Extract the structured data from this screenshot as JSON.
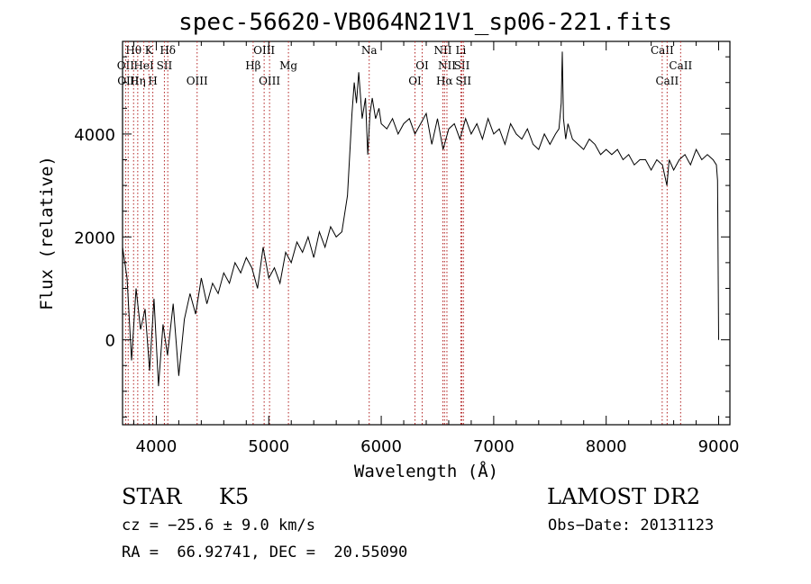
{
  "chart_data": {
    "type": "line",
    "title": "spec-56620-VB064N21V1_sp06-221.fits",
    "xlabel": "Wavelength (Å)",
    "ylabel": "Flux (relative)",
    "xlim": [
      3700,
      9100
    ],
    "ylim": [
      -1650,
      5800
    ],
    "x_ticks": [
      4000,
      5000,
      6000,
      7000,
      8000,
      9000
    ],
    "y_ticks": [
      0,
      2000,
      4000
    ],
    "grid": false,
    "series": [
      {
        "x": [
          3700,
          3740,
          3780,
          3820,
          3860,
          3900,
          3940,
          3980,
          4020,
          4060,
          4100,
          4150,
          4200,
          4250,
          4300,
          4350,
          4400,
          4450,
          4500,
          4550,
          4600,
          4650,
          4700,
          4750,
          4800,
          4850,
          4900,
          4950,
          5000,
          5050,
          5100,
          5150,
          5200,
          5250,
          5300,
          5350,
          5400,
          5450,
          5500,
          5550,
          5600,
          5650,
          5700,
          5720,
          5740,
          5760,
          5780,
          5800,
          5830,
          5860,
          5880,
          5900,
          5920,
          5950,
          5980,
          6000,
          6050,
          6100,
          6150,
          6200,
          6250,
          6300,
          6350,
          6400,
          6450,
          6500,
          6550,
          6600,
          6650,
          6700,
          6750,
          6800,
          6850,
          6900,
          6950,
          7000,
          7050,
          7100,
          7150,
          7200,
          7250,
          7300,
          7350,
          7400,
          7450,
          7500,
          7550,
          7580,
          7600,
          7610,
          7620,
          7640,
          7660,
          7700,
          7750,
          7800,
          7850,
          7900,
          7950,
          8000,
          8050,
          8100,
          8150,
          8200,
          8250,
          8300,
          8350,
          8400,
          8450,
          8500,
          8540,
          8560,
          8600,
          8650,
          8700,
          8750,
          8800,
          8850,
          8900,
          8950,
          8980,
          8990,
          9000
        ],
        "y": [
          1800,
          1200,
          -400,
          1000,
          200,
          600,
          -600,
          800,
          -900,
          300,
          -300,
          700,
          -700,
          400,
          900,
          500,
          1200,
          700,
          1100,
          900,
          1300,
          1100,
          1500,
          1300,
          1600,
          1400,
          1000,
          1800,
          1200,
          1400,
          1100,
          1700,
          1500,
          1900,
          1700,
          2000,
          1600,
          2100,
          1800,
          2200,
          2000,
          2100,
          2800,
          3600,
          4400,
          5000,
          4600,
          5200,
          4300,
          4700,
          3600,
          4400,
          4700,
          4300,
          4500,
          4200,
          4100,
          4300,
          4000,
          4200,
          4300,
          4000,
          4200,
          4400,
          3800,
          4300,
          3700,
          4100,
          4200,
          3900,
          4300,
          4000,
          4200,
          3900,
          4300,
          4000,
          4100,
          3800,
          4200,
          4000,
          3900,
          4100,
          3800,
          3700,
          4000,
          3800,
          4000,
          4100,
          4600,
          5600,
          4300,
          3900,
          4200,
          3900,
          3800,
          3700,
          3900,
          3800,
          3600,
          3700,
          3600,
          3700,
          3500,
          3600,
          3400,
          3500,
          3500,
          3300,
          3500,
          3400,
          3000,
          3500,
          3300,
          3500,
          3600,
          3400,
          3700,
          3500,
          3600,
          3500,
          3400,
          3100,
          0
        ]
      }
    ],
    "line_markers": [
      {
        "label": "Hθ",
        "x": 3798,
        "row": 0
      },
      {
        "label": "K",
        "x": 3934,
        "row": 0
      },
      {
        "label": "Hδ",
        "x": 4102,
        "row": 0
      },
      {
        "label": "OII",
        "x": 3727,
        "row": 1
      },
      {
        "label": "HeI",
        "x": 3889,
        "row": 1
      },
      {
        "label": "SII",
        "x": 4072,
        "row": 1
      },
      {
        "label": "OIII",
        "x": 3750,
        "row": 2
      },
      {
        "label": "Hη",
        "x": 3835,
        "row": 2
      },
      {
        "label": "H",
        "x": 3969,
        "row": 2
      },
      {
        "label": "OIII",
        "x": 4363,
        "row": 2
      },
      {
        "label": "OIII",
        "x": 4959,
        "row": 0
      },
      {
        "label": "Hβ",
        "x": 4861,
        "row": 1
      },
      {
        "label": "Mg",
        "x": 5175,
        "row": 1
      },
      {
        "label": "OIII",
        "x": 5007,
        "row": 2
      },
      {
        "label": "Na",
        "x": 5893,
        "row": 0
      },
      {
        "label": "OI",
        "x": 6364,
        "row": 1
      },
      {
        "label": "OI",
        "x": 6300,
        "row": 2
      },
      {
        "label": "NII",
        "x": 6548,
        "row": 0
      },
      {
        "label": "Li",
        "x": 6708,
        "row": 0
      },
      {
        "label": "NII",
        "x": 6584,
        "row": 1
      },
      {
        "label": "SII",
        "x": 6717,
        "row": 1
      },
      {
        "label": "Hα",
        "x": 6563,
        "row": 2
      },
      {
        "label": "SII",
        "x": 6731,
        "row": 2
      },
      {
        "label": "CaII",
        "x": 8498,
        "row": 0
      },
      {
        "label": "CaII",
        "x": 8662,
        "row": 1
      },
      {
        "label": "CaII",
        "x": 8542,
        "row": 2
      }
    ]
  },
  "info": {
    "class_label": "STAR",
    "subclass": "K5",
    "survey": "LAMOST DR2",
    "cz": "cz = −25.6 ± 9.0 km/s",
    "obs_date": "Obs−Date: 20131123",
    "coords": "RA =  66.92741, DEC =  20.55090"
  }
}
